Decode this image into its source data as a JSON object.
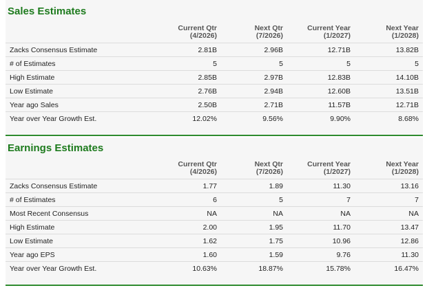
{
  "sales": {
    "title": "Sales Estimates",
    "columns": [
      {
        "line1": "Current Qtr",
        "line2": "(4/2026)"
      },
      {
        "line1": "Next Qtr",
        "line2": "(7/2026)"
      },
      {
        "line1": "Current Year",
        "line2": "(1/2027)"
      },
      {
        "line1": "Next Year",
        "line2": "(1/2028)"
      }
    ],
    "rows": [
      {
        "label": "Zacks Consensus Estimate",
        "values": [
          "2.81B",
          "2.96B",
          "12.71B",
          "13.82B"
        ]
      },
      {
        "label": "# of Estimates",
        "values": [
          "5",
          "5",
          "5",
          "5"
        ]
      },
      {
        "label": "High Estimate",
        "values": [
          "2.85B",
          "2.97B",
          "12.83B",
          "14.10B"
        ]
      },
      {
        "label": "Low Estimate",
        "values": [
          "2.76B",
          "2.94B",
          "12.60B",
          "13.51B"
        ]
      },
      {
        "label": "Year ago Sales",
        "values": [
          "2.50B",
          "2.71B",
          "11.57B",
          "12.71B"
        ]
      },
      {
        "label": "Year over Year Growth Est.",
        "values": [
          "12.02%",
          "9.56%",
          "9.90%",
          "8.68%"
        ]
      }
    ]
  },
  "earnings": {
    "title": "Earnings Estimates",
    "columns": [
      {
        "line1": "Current Qtr",
        "line2": "(4/2026)"
      },
      {
        "line1": "Next Qtr",
        "line2": "(7/2026)"
      },
      {
        "line1": "Current Year",
        "line2": "(1/2027)"
      },
      {
        "line1": "Next Year",
        "line2": "(1/2028)"
      }
    ],
    "rows": [
      {
        "label": "Zacks Consensus Estimate",
        "values": [
          "1.77",
          "1.89",
          "11.30",
          "13.16"
        ]
      },
      {
        "label": "# of Estimates",
        "values": [
          "6",
          "5",
          "7",
          "7"
        ]
      },
      {
        "label": "Most Recent Consensus",
        "values": [
          "NA",
          "NA",
          "NA",
          "NA"
        ]
      },
      {
        "label": "High Estimate",
        "values": [
          "2.00",
          "1.95",
          "11.70",
          "13.47"
        ]
      },
      {
        "label": "Low Estimate",
        "values": [
          "1.62",
          "1.75",
          "10.96",
          "12.86"
        ]
      },
      {
        "label": "Year ago EPS",
        "values": [
          "1.60",
          "1.59",
          "9.76",
          "11.30"
        ]
      },
      {
        "label": "Year over Year Growth Est.",
        "values": [
          "10.63%",
          "18.87%",
          "15.78%",
          "16.47%"
        ]
      }
    ]
  },
  "colors": {
    "title_green": "#1e7b1e",
    "rule_green": "#2e8b2e",
    "panel_bg": "#f6f6f6"
  }
}
